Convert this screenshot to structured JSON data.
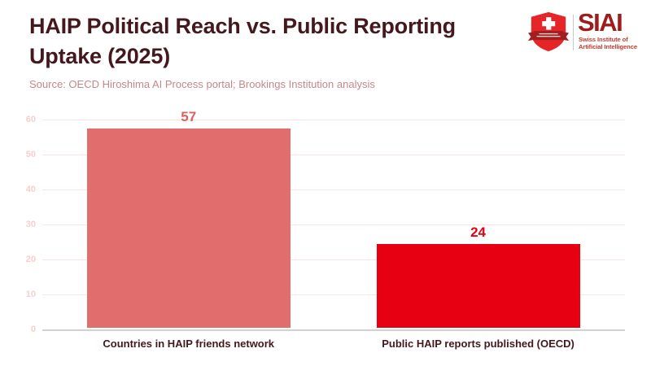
{
  "header": {
    "title_lines": [
      "HAIP Political Reach vs. Public Reporting",
      "Uptake (2025)"
    ],
    "source": "Source: OECD Hiroshima AI Process portal; Brookings Institution analysis"
  },
  "logo": {
    "acronym": "SIAI",
    "subtitle_lines": [
      "Swiss Institute of",
      "Artificial Intelligence"
    ]
  },
  "chart_data": {
    "type": "bar",
    "title": "HAIP Political Reach vs. Public Reporting Uptake (2025)",
    "source": "Source: OECD Hiroshima AI Process portal; Brookings Institution analysis",
    "categories": [
      "Countries in HAIP friends network",
      "Public HAIP reports published (OECD)"
    ],
    "values": [
      57,
      24
    ],
    "bar_colors": [
      "#e16d6d",
      "#e60012"
    ],
    "value_label_colors": [
      "#de5f5f",
      "#e60012"
    ],
    "ylim": [
      0,
      60
    ],
    "yticks": [
      0,
      10,
      20,
      30,
      40,
      50,
      60
    ],
    "grid": true,
    "legend": false,
    "xlabel": "",
    "ylabel": ""
  },
  "colors": {
    "title": "#44181c",
    "source": "#c5878b",
    "grid": "#fbe3e3",
    "axis_line": "#d2d2d2",
    "tick_label": "#f6cfcf",
    "category_label": "#44181c",
    "logo_text": "#9e1c1c",
    "logo_subtitle": "#c23a2e",
    "shield_red": "#e52528",
    "banner_dark_red": "#a31f1f"
  }
}
